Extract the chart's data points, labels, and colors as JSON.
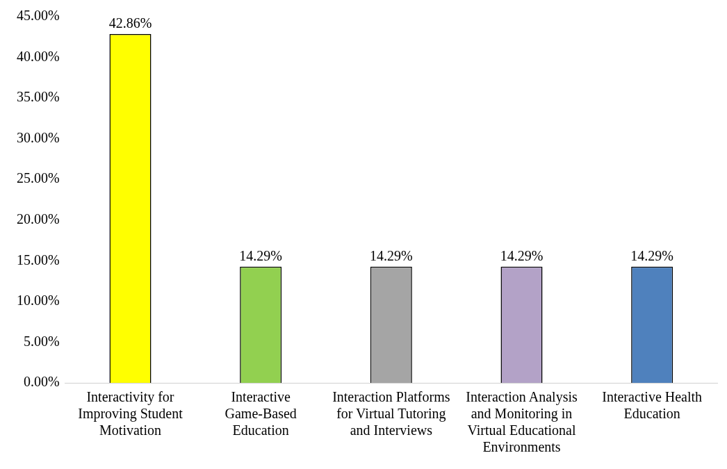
{
  "chart_data": {
    "type": "bar",
    "categories": [
      "Interactivity for Improving Student Motivation",
      "Interactive Game-Based Education",
      "Interaction Platforms for Virtual Tutoring and Interviews",
      "Interaction Analysis and Monitoring in Virtual Educational Environments",
      "Interactive Health Education"
    ],
    "values": [
      42.86,
      14.29,
      14.29,
      14.29,
      14.29
    ],
    "colors": [
      "#ffff00",
      "#92d050",
      "#a5a5a5",
      "#b3a2c7",
      "#4f81bd"
    ],
    "value_labels": [
      "42.86%",
      "14.29%",
      "14.29%",
      "14.29%",
      "14.29%"
    ],
    "ylim": [
      0,
      45
    ],
    "yticks": [
      {
        "value": 0,
        "label": "0.00%"
      },
      {
        "value": 5,
        "label": "5.00%"
      },
      {
        "value": 10,
        "label": "10.00%"
      },
      {
        "value": 15,
        "label": "15.00%"
      },
      {
        "value": 20,
        "label": "20.00%"
      },
      {
        "value": 25,
        "label": "25.00%"
      },
      {
        "value": 30,
        "label": "30.00%"
      },
      {
        "value": 35,
        "label": "35.00%"
      },
      {
        "value": 40,
        "label": "40.00%"
      },
      {
        "value": 45,
        "label": "45.00%"
      }
    ],
    "grid": false,
    "legend": false
  }
}
